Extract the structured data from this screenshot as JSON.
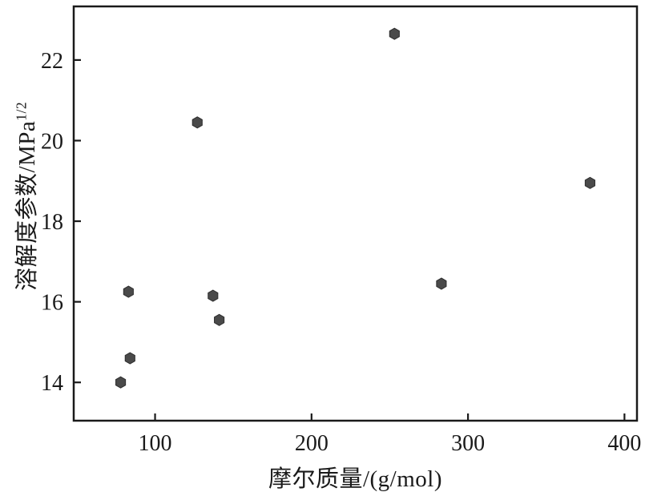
{
  "chart_data": {
    "type": "scatter",
    "title": "",
    "xlabel": "摩尔质量/(g/mol)",
    "ylabel": "溶解度参数/MPa",
    "ylabel_superscript": "1/2",
    "xlim": [
      48,
      408
    ],
    "ylim": [
      13.05,
      23.33
    ],
    "xticks": [
      100,
      200,
      300,
      400
    ],
    "yticks": [
      14,
      16,
      18,
      20,
      22
    ],
    "grid": false,
    "legend": "none",
    "marker": {
      "shape": "hexagon",
      "color": "#4a4a4a",
      "edge_color": "#2e2e2e",
      "radius": 7
    },
    "axis_color": "#1a1a1a",
    "background": "#ffffff",
    "points": [
      {
        "x": 78,
        "y": 14.0
      },
      {
        "x": 83,
        "y": 16.25
      },
      {
        "x": 84,
        "y": 14.6
      },
      {
        "x": 127,
        "y": 20.45
      },
      {
        "x": 137,
        "y": 16.15
      },
      {
        "x": 141,
        "y": 15.55
      },
      {
        "x": 253,
        "y": 22.65
      },
      {
        "x": 283,
        "y": 16.45
      },
      {
        "x": 378,
        "y": 18.95
      }
    ]
  }
}
